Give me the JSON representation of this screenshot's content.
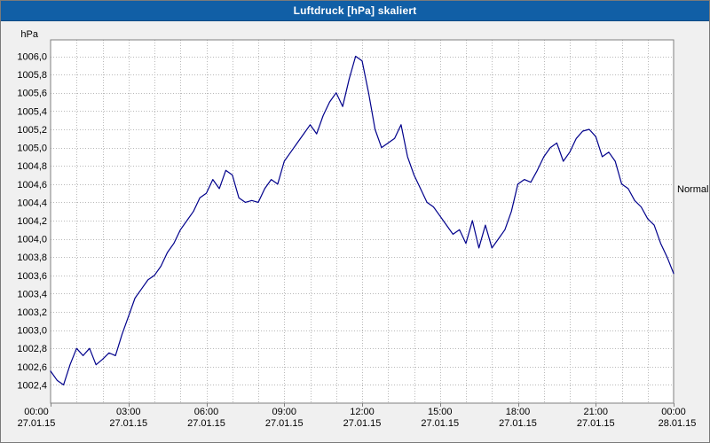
{
  "window": {
    "title": "Luftdruck [hPa] skaliert"
  },
  "colors": {
    "titlebar": "#115fa6",
    "titlebar_text": "#ffffff",
    "page_bg": "#f0f0f0",
    "plot_bg": "#ffffff",
    "grid": "#b9b9b9",
    "border": "#7f7f7f",
    "line": "#00008b",
    "text": "#000000"
  },
  "chart_data": {
    "type": "line",
    "title": "Luftdruck [hPa] skaliert",
    "xlabel": "",
    "ylabel": "hPa",
    "y_unit_label": "hPa",
    "ylim": [
      1002.4,
      1006.0
    ],
    "y_tick_step": 0.2,
    "grid": true,
    "legend": "none",
    "y_tick_labels": [
      "1006,0",
      "1005,8",
      "1005,6",
      "1005,4",
      "1005,2",
      "1005,0",
      "1004,8",
      "1004,6",
      "1004,4",
      "1004,2",
      "1004,0",
      "1003,8",
      "1003,6",
      "1003,4",
      "1003,2",
      "1003,0",
      "1002,8",
      "1002,6",
      "1002,4"
    ],
    "x_ticks": [
      {
        "hour": 0,
        "time": "00:00",
        "date": "27.01.15"
      },
      {
        "hour": 3,
        "time": "03:00",
        "date": "27.01.15"
      },
      {
        "hour": 6,
        "time": "06:00",
        "date": "27.01.15"
      },
      {
        "hour": 9,
        "time": "09:00",
        "date": "27.01.15"
      },
      {
        "hour": 12,
        "time": "12:00",
        "date": "27.01.15"
      },
      {
        "hour": 15,
        "time": "15:00",
        "date": "27.01.15"
      },
      {
        "hour": 18,
        "time": "18:00",
        "date": "27.01.15"
      },
      {
        "hour": 21,
        "time": "21:00",
        "date": "27.01.15"
      },
      {
        "hour": 24,
        "time": "00:00",
        "date": "28.01.15"
      }
    ],
    "x_range_hours": [
      0,
      24
    ],
    "annotations": [
      {
        "label": "Normal",
        "value": 1004.55,
        "position": "right"
      }
    ],
    "series": [
      {
        "name": "Luftdruck",
        "sample_interval_minutes": 15,
        "start_time": "00:00",
        "values": [
          1002.55,
          1002.45,
          1002.4,
          1002.62,
          1002.8,
          1002.72,
          1002.8,
          1002.62,
          1002.68,
          1002.75,
          1002.72,
          1002.95,
          1003.15,
          1003.35,
          1003.45,
          1003.55,
          1003.6,
          1003.7,
          1003.85,
          1003.95,
          1004.1,
          1004.2,
          1004.3,
          1004.45,
          1004.5,
          1004.65,
          1004.55,
          1004.75,
          1004.7,
          1004.45,
          1004.4,
          1004.42,
          1004.4,
          1004.55,
          1004.65,
          1004.6,
          1004.85,
          1004.95,
          1005.05,
          1005.15,
          1005.25,
          1005.15,
          1005.35,
          1005.5,
          1005.6,
          1005.45,
          1005.75,
          1006.0,
          1005.95,
          1005.6,
          1005.2,
          1005.0,
          1005.05,
          1005.1,
          1005.25,
          1004.9,
          1004.7,
          1004.55,
          1004.4,
          1004.35,
          1004.25,
          1004.15,
          1004.05,
          1004.1,
          1003.95,
          1004.2,
          1003.9,
          1004.15,
          1003.9,
          1004.0,
          1004.1,
          1004.3,
          1004.6,
          1004.65,
          1004.62,
          1004.75,
          1004.9,
          1005.0,
          1005.05,
          1004.85,
          1004.95,
          1005.1,
          1005.18,
          1005.2,
          1005.12,
          1004.9,
          1004.95,
          1004.85,
          1004.6,
          1004.55,
          1004.42,
          1004.35,
          1004.22,
          1004.15,
          1003.95,
          1003.8,
          1003.62
        ]
      }
    ]
  }
}
